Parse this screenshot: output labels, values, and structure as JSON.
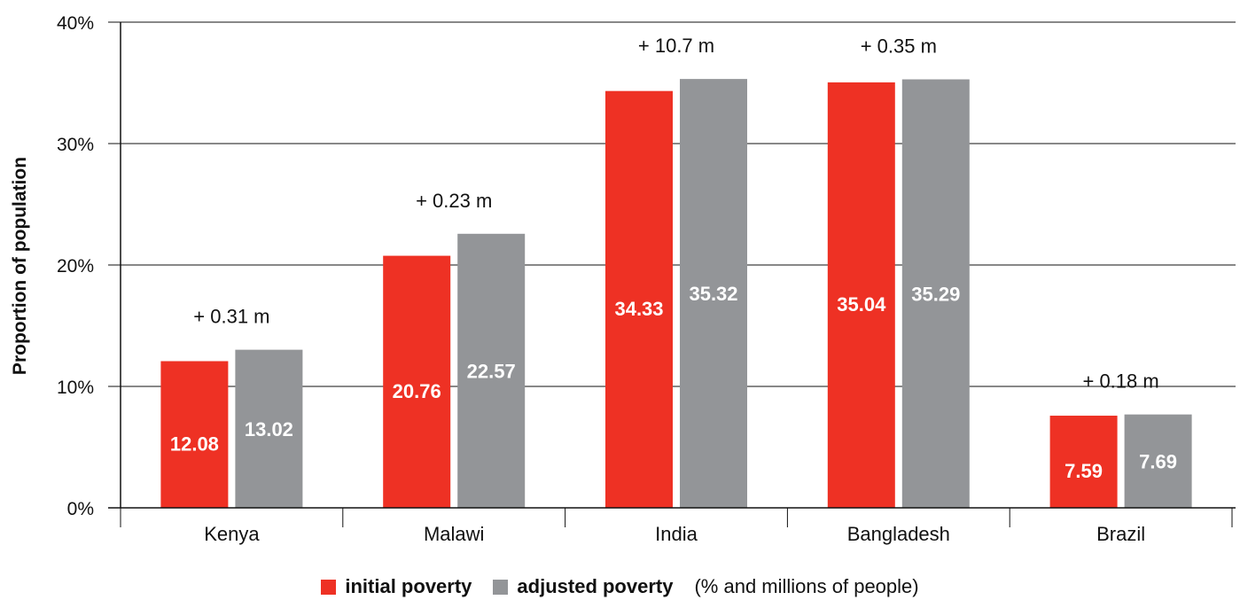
{
  "colors": {
    "initial": "#ee3124",
    "adjusted": "#939598",
    "grid": "#111111"
  },
  "chart_data": {
    "type": "bar",
    "categories": [
      "Kenya",
      "Malawi",
      "India",
      "Bangladesh",
      "Brazil"
    ],
    "series": [
      {
        "name": "initial poverty",
        "values": [
          12.08,
          20.76,
          34.33,
          35.04,
          7.59
        ],
        "labels": [
          "12.08",
          "20.76",
          "34.33",
          "35.04",
          "7.59"
        ]
      },
      {
        "name": "adjusted poverty",
        "values": [
          13.02,
          22.57,
          35.32,
          35.29,
          7.69
        ],
        "labels": [
          "13.02",
          "22.57",
          "35.32",
          "35.29",
          "7.69"
        ]
      }
    ],
    "annotations": [
      "+ 0.31 m",
      "+ 0.23 m",
      "+ 10.7 m",
      "+ 0.35 m",
      "+ 0.18 m"
    ],
    "ylabel": "Proportion of population",
    "ylim": [
      0,
      40
    ],
    "yticks": [
      0,
      10,
      20,
      30,
      40
    ],
    "ytick_labels": [
      "0%",
      "10%",
      "20%",
      "30%",
      "40%"
    ],
    "grid": true,
    "legend_position": "bottom-center",
    "legend_note": "(% and millions of people)"
  }
}
